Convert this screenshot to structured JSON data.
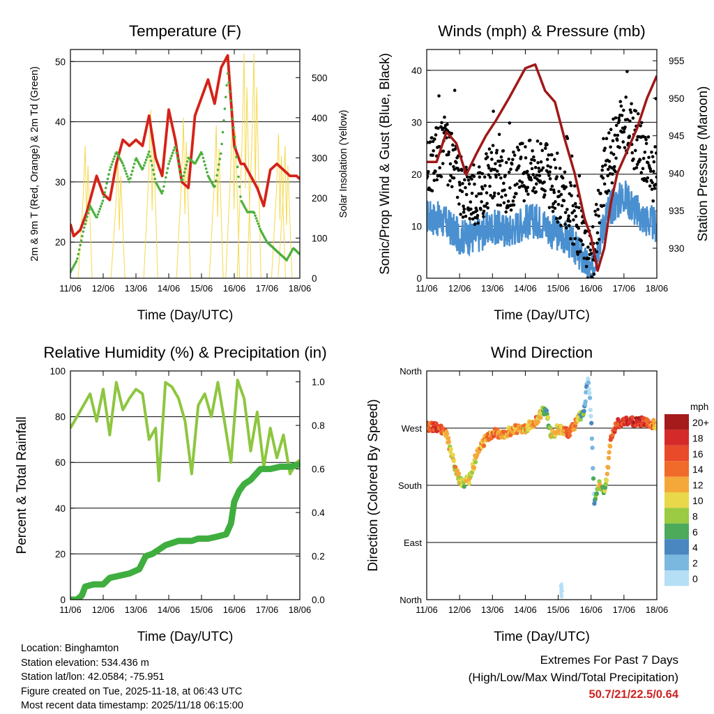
{
  "chart_data": [
    {
      "type": "line",
      "id": "temperature",
      "title": "Temperature (F)",
      "xlabel": "Time (Day/UTC)",
      "ylabel": "2m & 9m T (Red, Orange) & 2m Td (Green)",
      "y2label": "Solar Insolation (Yellow)",
      "x_ticks": [
        "11/06",
        "12/06",
        "13/06",
        "14/06",
        "15/06",
        "16/06",
        "17/06",
        "18/06"
      ],
      "xlim": [
        0,
        7
      ],
      "ylim": [
        14,
        52
      ],
      "y_ticks": [
        20,
        30,
        40,
        50
      ],
      "y2lim": [
        0,
        570
      ],
      "y2_ticks": [
        0,
        100,
        200,
        300,
        400,
        500
      ],
      "series": [
        {
          "name": "2m T",
          "color": "#d42020",
          "x": [
            0,
            0.1,
            0.3,
            0.5,
            0.8,
            1.0,
            1.2,
            1.4,
            1.6,
            1.8,
            2.0,
            2.2,
            2.4,
            2.6,
            2.8,
            3.0,
            3.2,
            3.4,
            3.6,
            3.8,
            4.0,
            4.2,
            4.4,
            4.6,
            4.8,
            5.0,
            5.2,
            5.3,
            5.5,
            5.7,
            5.9,
            6.1,
            6.3,
            6.5,
            6.7,
            6.9,
            7.0
          ],
          "y": [
            23,
            21,
            22,
            25,
            31,
            28,
            27,
            33,
            37,
            36,
            37,
            36,
            41,
            34,
            31,
            42,
            37,
            30,
            29,
            41,
            44,
            47,
            43,
            49,
            51,
            36,
            33,
            33,
            31,
            29,
            26,
            32,
            33,
            32,
            31,
            31,
            30.5
          ]
        },
        {
          "name": "2m Td",
          "color": "#4caf3c",
          "x": [
            0,
            0.2,
            0.4,
            0.6,
            0.8,
            1.0,
            1.2,
            1.4,
            1.6,
            1.8,
            2.0,
            2.2,
            2.4,
            2.6,
            2.8,
            3.0,
            3.2,
            3.4,
            3.6,
            3.8,
            4.0,
            4.2,
            4.4,
            4.6,
            4.8,
            5.0,
            5.2,
            5.4,
            5.6,
            5.8,
            6.0,
            6.2,
            6.4,
            6.6,
            6.8,
            7.0
          ],
          "y": [
            15,
            17,
            22,
            26,
            24,
            27,
            32,
            35,
            33,
            30,
            34,
            32,
            35,
            30,
            28,
            33,
            36,
            30,
            34,
            33,
            35,
            31,
            29,
            35,
            48,
            38,
            27,
            25,
            25,
            22,
            20,
            19,
            18,
            17,
            19,
            18
          ]
        }
      ],
      "solar_peaks": [
        {
          "x": 0.45,
          "value": 330
        },
        {
          "x": 1.45,
          "value": 300
        },
        {
          "x": 2.45,
          "value": 420
        },
        {
          "x": 3.45,
          "value": 400
        },
        {
          "x": 4.45,
          "value": 380
        },
        {
          "x": 4.95,
          "value": 430
        },
        {
          "x": 5.3,
          "value": 560
        },
        {
          "x": 5.6,
          "value": 560
        },
        {
          "x": 6.35,
          "value": 360
        },
        {
          "x": 6.55,
          "value": 330
        }
      ]
    },
    {
      "type": "scatter",
      "id": "winds",
      "title": "Winds (mph) & Pressure (mb)",
      "xlabel": "Time (Day/UTC)",
      "ylabel": "Sonic/Prop Wind & Gust (Blue, Black)",
      "y2label": "Station Pressure (Maroon)",
      "x_ticks": [
        "11/06",
        "12/06",
        "13/06",
        "14/06",
        "15/06",
        "16/06",
        "17/06",
        "18/06"
      ],
      "xlim": [
        0,
        7
      ],
      "ylim": [
        0,
        44
      ],
      "y_ticks": [
        0,
        10,
        20,
        30,
        40
      ],
      "y2lim": [
        926,
        956.5
      ],
      "y2_ticks": [
        930,
        935,
        940,
        945,
        950,
        955
      ],
      "series": [
        {
          "name": "Wind",
          "color": "#4a90d0",
          "x": [
            0,
            0.5,
            1.0,
            1.5,
            2.0,
            2.5,
            3.0,
            3.5,
            3.8,
            4.2,
            4.5,
            4.9,
            5.0,
            5.2,
            5.5,
            6.0,
            6.5,
            7.0
          ],
          "y": [
            12,
            11,
            8,
            8,
            10,
            9,
            11,
            11,
            9,
            8,
            6,
            2,
            1,
            6,
            13,
            16,
            12,
            10
          ]
        },
        {
          "name": "Gust",
          "color": "#000000",
          "x": [
            0,
            0.5,
            1.0,
            1.5,
            2.0,
            2.5,
            3.0,
            3.5,
            3.8,
            4.2,
            4.5,
            4.9,
            5.0,
            5.2,
            5.5,
            6.0,
            6.5,
            7.0
          ],
          "y": [
            20,
            26,
            18,
            16,
            20,
            18,
            21,
            22,
            18,
            15,
            12,
            5,
            2,
            12,
            22,
            30,
            25,
            19
          ]
        },
        {
          "name": "Pressure",
          "color": "#a01818",
          "x": [
            0,
            0.3,
            0.6,
            0.9,
            1.2,
            1.5,
            1.8,
            2.1,
            2.5,
            3.0,
            3.3,
            3.6,
            3.9,
            4.2,
            4.5,
            4.8,
            5.0,
            5.2,
            5.4,
            5.6,
            5.8,
            6.1,
            6.4,
            6.7,
            7.0
          ],
          "y": [
            941.5,
            941.5,
            945.5,
            944,
            939.8,
            942.5,
            945,
            947,
            950,
            954,
            954.5,
            951,
            949.5,
            944.5,
            940,
            934,
            931.5,
            927,
            930,
            936,
            940,
            943,
            946,
            950,
            953
          ]
        }
      ]
    },
    {
      "type": "line",
      "id": "humidity",
      "title": "Relative Humidity (%) & Precipitation (in)",
      "xlabel": "Time (Day/UTC)",
      "ylabel": "Percent & Total Rainfall",
      "x_ticks": [
        "11/06",
        "12/06",
        "13/06",
        "14/06",
        "15/06",
        "16/06",
        "17/06",
        "18/06"
      ],
      "xlim": [
        0,
        7
      ],
      "ylim": [
        0,
        100
      ],
      "y_ticks": [
        0,
        20,
        40,
        60,
        80,
        100
      ],
      "y2lim": [
        0,
        1.05
      ],
      "y2_ticks": [
        "0.0",
        "0.2",
        "0.4",
        "0.6",
        "0.8",
        "1.0"
      ],
      "series": [
        {
          "name": "RH",
          "color": "#8dc63f",
          "x": [
            0,
            0.2,
            0.4,
            0.6,
            0.8,
            1.0,
            1.2,
            1.4,
            1.6,
            1.8,
            2.0,
            2.2,
            2.4,
            2.6,
            2.7,
            2.9,
            3.1,
            3.3,
            3.5,
            3.7,
            3.9,
            4.1,
            4.3,
            4.5,
            4.7,
            4.9,
            5.1,
            5.3,
            5.5,
            5.7,
            5.9,
            6.1,
            6.3,
            6.5,
            6.7,
            6.9,
            7.0
          ],
          "y": [
            75,
            80,
            85,
            90,
            78,
            92,
            72,
            95,
            83,
            88,
            92,
            90,
            70,
            75,
            52,
            95,
            93,
            88,
            78,
            55,
            85,
            90,
            80,
            95,
            78,
            60,
            96,
            88,
            65,
            82,
            58,
            75,
            62,
            72,
            55,
            60,
            61
          ]
        },
        {
          "name": "Total Rainfall",
          "color": "#3fae3f",
          "x": [
            0,
            0.2,
            0.35,
            0.45,
            0.7,
            1.0,
            1.2,
            1.5,
            1.8,
            2.1,
            2.3,
            2.5,
            2.7,
            2.9,
            3.1,
            3.3,
            3.5,
            3.7,
            3.9,
            4.2,
            4.5,
            4.75,
            4.9,
            5.0,
            5.15,
            5.3,
            5.5,
            5.8,
            6.1,
            6.4,
            6.7,
            7.0
          ],
          "y": [
            0,
            0,
            0.02,
            0.06,
            0.07,
            0.07,
            0.1,
            0.11,
            0.12,
            0.14,
            0.2,
            0.21,
            0.23,
            0.25,
            0.26,
            0.27,
            0.27,
            0.27,
            0.28,
            0.28,
            0.29,
            0.3,
            0.35,
            0.45,
            0.5,
            0.53,
            0.55,
            0.6,
            0.6,
            0.61,
            0.61,
            0.62
          ]
        }
      ]
    },
    {
      "type": "scatter",
      "id": "wind-direction",
      "title": "Wind Direction",
      "xlabel": "Time (Day/UTC)",
      "ylabel": "Direction (Colored By Speed)",
      "x_ticks": [
        "11/06",
        "12/06",
        "13/06",
        "14/06",
        "15/06",
        "16/06",
        "17/06",
        "18/06"
      ],
      "xlim": [
        0,
        7
      ],
      "ylim": [
        0,
        360
      ],
      "y_ticks": [
        {
          "value": 0,
          "label": "North"
        },
        {
          "value": 90,
          "label": "East"
        },
        {
          "value": 180,
          "label": "South"
        },
        {
          "value": 270,
          "label": "West"
        },
        {
          "value": 360,
          "label": "North"
        }
      ],
      "legend": {
        "title": "mph",
        "labels": [
          "20+",
          "18",
          "16",
          "14",
          "12",
          "10",
          "8",
          "6",
          "4",
          "2",
          "0"
        ],
        "colors": [
          "#a51b1b",
          "#d42a2a",
          "#e84a2a",
          "#f06a2a",
          "#f5a83a",
          "#e8d84a",
          "#9acb42",
          "#4caa5a",
          "#4a86c0",
          "#7ab8e0",
          "#b5dff5"
        ]
      },
      "series": [
        {
          "name": "Direction",
          "x": [
            0,
            0.3,
            0.6,
            0.9,
            1.1,
            1.3,
            1.5,
            1.8,
            2.1,
            2.4,
            2.7,
            3.0,
            3.3,
            3.6,
            3.8,
            4.0,
            4.3,
            4.5,
            4.8,
            4.9,
            5.0,
            5.1,
            5.2,
            5.25,
            5.4,
            5.5,
            5.6,
            5.8,
            6.2,
            6.6,
            7.0
          ],
          "y": [
            272,
            272,
            260,
            200,
            180,
            190,
            225,
            255,
            262,
            262,
            268,
            270,
            280,
            300,
            258,
            270,
            262,
            275,
            300,
            350,
            290,
            150,
            180,
            180,
            172,
            200,
            255,
            278,
            280,
            280,
            275
          ],
          "speeds": [
            14,
            17,
            12,
            10,
            9,
            10,
            11,
            12,
            14,
            12,
            12,
            11,
            14,
            6,
            10,
            10,
            14,
            14,
            4,
            2,
            2,
            4,
            6,
            10,
            8,
            10,
            14,
            16,
            18,
            18,
            12
          ]
        }
      ]
    }
  ],
  "info": {
    "location": "Location: Binghamton",
    "elevation": "Station elevation: 534.436 m",
    "latlon": "Station lat/lon: 42.0584; -75.951",
    "created": "Figure created on Tue, 2025-11-18, at 06:43 UTC",
    "recent": "Most recent data timestamp: 2025/11/18 06:15:00"
  },
  "extremes": {
    "title": "Extremes For Past 7 Days",
    "subtitle": "(High/Low/Max Wind/Total Precipitation)",
    "value": "50.7/21/22.5/0.64"
  }
}
